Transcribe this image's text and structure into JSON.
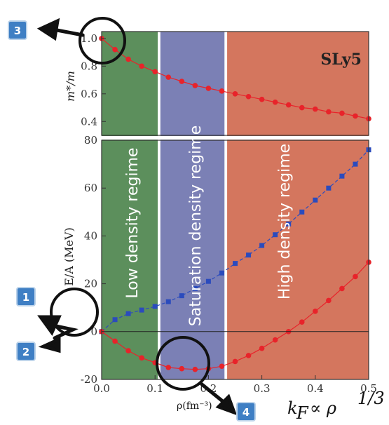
{
  "chart_data": [
    {
      "type": "line",
      "panel": "top",
      "ylabel": "m*/m",
      "model_label": "SLy5",
      "ylim": [
        0.3,
        1.05
      ],
      "yticks": [
        "1.0",
        "0.8",
        "0.6",
        "0.4"
      ],
      "series": [
        {
          "marker": "circle",
          "color": "#e8232a",
          "x": [
            0.0,
            0.025,
            0.05,
            0.075,
            0.1,
            0.125,
            0.15,
            0.175,
            0.2,
            0.225,
            0.25,
            0.275,
            0.3,
            0.325,
            0.35,
            0.375,
            0.4,
            0.425,
            0.45,
            0.475,
            0.5
          ],
          "y": [
            1.0,
            0.92,
            0.85,
            0.8,
            0.76,
            0.72,
            0.69,
            0.66,
            0.64,
            0.62,
            0.6,
            0.58,
            0.56,
            0.54,
            0.52,
            0.5,
            0.49,
            0.47,
            0.46,
            0.44,
            0.42
          ]
        }
      ]
    },
    {
      "type": "line",
      "panel": "bottom",
      "ylabel": "E/A (MeV)",
      "xlim": [
        0.0,
        0.5
      ],
      "ylim": [
        -20,
        80
      ],
      "xticks": [
        "0.0",
        "0.1",
        "0.2",
        "0.3",
        "0.4",
        "0.5"
      ],
      "yticks": [
        "80",
        "60",
        "40",
        "20",
        "0",
        "-20"
      ],
      "series": [
        {
          "marker": "square",
          "color": "#2b4bbd",
          "x": [
            0.0,
            0.025,
            0.05,
            0.075,
            0.1,
            0.125,
            0.15,
            0.175,
            0.2,
            0.225,
            0.25,
            0.275,
            0.3,
            0.325,
            0.35,
            0.375,
            0.4,
            0.425,
            0.45,
            0.475,
            0.5
          ],
          "y": [
            0,
            5,
            7.5,
            9,
            10.5,
            12.5,
            15,
            18,
            21,
            24.5,
            28.5,
            32,
            36,
            40.5,
            45,
            50,
            55,
            60,
            65,
            70,
            76
          ]
        },
        {
          "marker": "circle",
          "color": "#e8232a",
          "x": [
            0.0,
            0.025,
            0.05,
            0.075,
            0.1,
            0.125,
            0.15,
            0.175,
            0.2,
            0.225,
            0.25,
            0.275,
            0.3,
            0.325,
            0.35,
            0.375,
            0.4,
            0.425,
            0.45,
            0.475,
            0.5
          ],
          "y": [
            0,
            -4,
            -8,
            -11,
            -13,
            -15,
            -15.5,
            -15.8,
            -15.5,
            -14.5,
            -12.5,
            -10,
            -7,
            -3.5,
            0,
            4,
            8.5,
            13,
            18,
            23,
            29
          ]
        }
      ]
    }
  ],
  "regions": [
    {
      "label": "Low density regime",
      "x0": 0.0,
      "x1": 0.105,
      "color": "#5c8f5c"
    },
    {
      "label": "Saturation density regime",
      "x0": 0.11,
      "x1": 0.23,
      "color": "#7b80b5"
    },
    {
      "label": "High density regime",
      "x0": 0.235,
      "x1": 0.5,
      "color": "#d4765e"
    }
  ],
  "xaxis": {
    "rho_label": "ρ(fm⁻³)",
    "kf_label": "k",
    "kf_sub": "F",
    "kf_relation": "∝ ρ",
    "kf_exp": "1/3"
  },
  "callouts": [
    {
      "number": "1",
      "color": "#3f7fc4"
    },
    {
      "number": "2",
      "color": "#3f7fc4"
    },
    {
      "number": "3",
      "color": "#3f7fc4"
    },
    {
      "number": "4",
      "color": "#3f7fc4"
    }
  ]
}
